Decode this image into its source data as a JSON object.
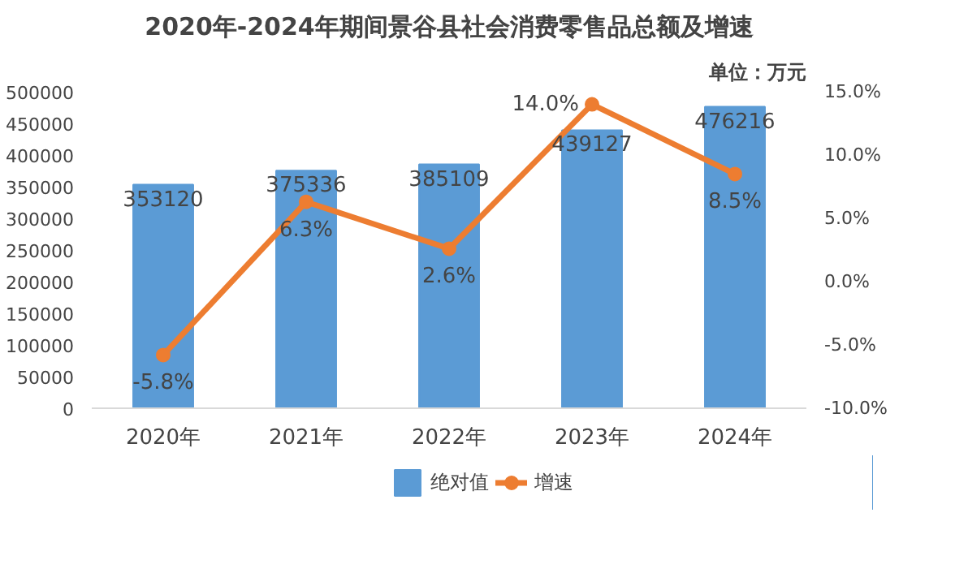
{
  "chart_data": {
    "type": "bar",
    "title": "2020年-2024年期间景谷县社会消费零售品总额及增速",
    "annotations": [
      "单位：万元"
    ],
    "categories": [
      "2020年",
      "2021年",
      "2022年",
      "2023年",
      "2024年"
    ],
    "series": [
      {
        "name": "绝对值",
        "color": "#5b9bd5",
        "values": [
          353120,
          375336,
          385109,
          439127,
          476216
        ],
        "value_labels": [
          "353120",
          "375336",
          "385109",
          "439127",
          "476216"
        ]
      },
      {
        "name": "增速",
        "type": "line",
        "axis": "y2",
        "color": "#ed7d31",
        "marker": "circle",
        "values": [
          -5.8,
          6.3,
          2.6,
          14.0,
          8.5
        ],
        "value_labels": [
          "-5.8%",
          "6.3%",
          "2.6%",
          "14.0%",
          "8.5%"
        ]
      }
    ],
    "ylim": [
      0,
      500000
    ],
    "yticks": [
      0,
      50000,
      100000,
      150000,
      200000,
      250000,
      300000,
      350000,
      400000,
      450000,
      500000
    ],
    "y2lim": [
      -10,
      15
    ],
    "y2ticks": [
      {
        "value": -10,
        "label": "-10.0%"
      },
      {
        "value": -5,
        "label": "-5.0%"
      },
      {
        "value": 0,
        "label": "0.0%"
      },
      {
        "value": 5,
        "label": "5.0%"
      },
      {
        "value": 10,
        "label": "10.0%"
      },
      {
        "value": 15,
        "label": "15.0%"
      }
    ],
    "legend": "bottom",
    "grid": false
  }
}
